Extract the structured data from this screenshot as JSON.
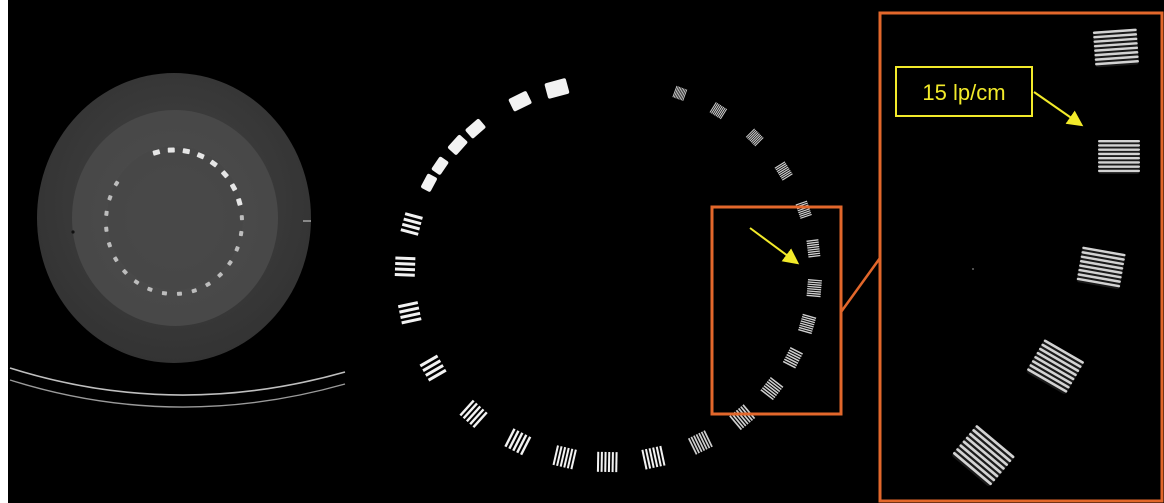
{
  "figure": {
    "callout_label": "15 lp/cm",
    "colors": {
      "background": "#000000",
      "zoom_box": "#e2672b",
      "annotation": "#f2ea2a",
      "label_text": "#f2ea2a",
      "phantom_outer": "#3b3b3b",
      "phantom_inner": "#4a4a4a",
      "bar": "#f2f2f2"
    },
    "panels": [
      "full-phantom-scan",
      "zoomed-bar-pattern-ring",
      "magnified-detail-inset"
    ]
  }
}
